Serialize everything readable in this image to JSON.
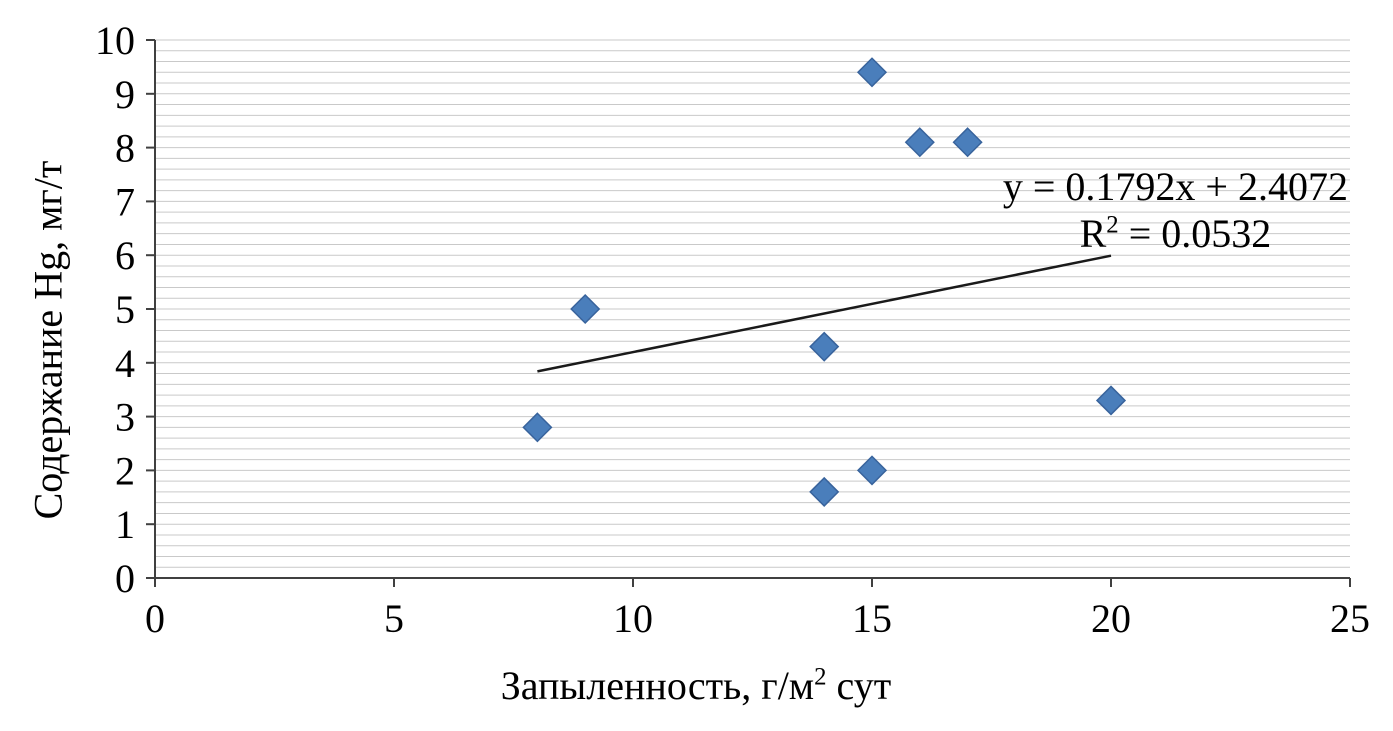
{
  "chart_data": {
    "type": "scatter",
    "title": "",
    "xlabel": "Запыленность, г/м2 сут",
    "xlabel_parts": {
      "prefix": "Запыленность, г/м",
      "sup": "2",
      "suffix": " сут"
    },
    "ylabel": "Содержание Hg, мг/т",
    "xlim": [
      0,
      25
    ],
    "ylim": [
      0,
      10
    ],
    "x_ticks": [
      0,
      5,
      10,
      15,
      20,
      25
    ],
    "y_ticks": [
      0,
      1,
      2,
      3,
      4,
      5,
      6,
      7,
      8,
      9,
      10
    ],
    "minor_gridline_step": 0.2,
    "grid": "horizontal-minor",
    "legend": "none",
    "points": [
      {
        "x": 8,
        "y": 2.8
      },
      {
        "x": 9,
        "y": 5.0
      },
      {
        "x": 14,
        "y": 1.6
      },
      {
        "x": 14,
        "y": 4.3
      },
      {
        "x": 15,
        "y": 2.0
      },
      {
        "x": 15,
        "y": 9.4
      },
      {
        "x": 16,
        "y": 8.1
      },
      {
        "x": 17,
        "y": 8.1
      },
      {
        "x": 20,
        "y": 3.3
      }
    ],
    "trendline": {
      "slope": 0.1792,
      "intercept": 2.4072,
      "x_start": 8,
      "x_end": 20
    },
    "annotation": {
      "line1": "y = 0.1792x + 2.4072",
      "r_prefix": "R",
      "r_sup": "2",
      "r_rest": " = 0.0532"
    }
  },
  "colors": {
    "marker_fill": "#4a7ebb",
    "marker_stroke": "#38639c",
    "trendline": "#1a1a1a",
    "gridline": "#c9c9c9",
    "axis": "#404040",
    "text": "#000000",
    "background": "#ffffff"
  }
}
